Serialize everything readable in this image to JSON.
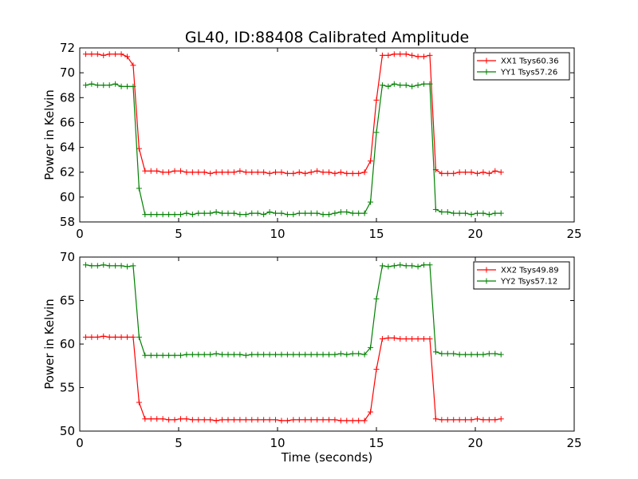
{
  "title": "GL40, ID:88408 Calibrated Amplitude",
  "xlabel": "Time (seconds)",
  "colors": {
    "red": "#ff0000",
    "green": "#008000"
  },
  "chart_data": [
    {
      "type": "line",
      "ylabel": "Power in Kelvin",
      "xlim": [
        0,
        25
      ],
      "ylim": [
        58,
        72
      ],
      "xticks": [
        0,
        5,
        10,
        15,
        20,
        25
      ],
      "yticks": [
        58,
        60,
        62,
        64,
        66,
        68,
        70,
        72
      ],
      "legend": "top-right",
      "x": [
        0.3,
        0.6,
        0.9,
        1.2,
        1.5,
        1.8,
        2.1,
        2.4,
        2.7,
        3.0,
        3.3,
        3.6,
        3.9,
        4.2,
        4.5,
        4.8,
        5.1,
        5.4,
        5.7,
        6.0,
        6.3,
        6.6,
        6.9,
        7.2,
        7.5,
        7.8,
        8.1,
        8.4,
        8.7,
        9.0,
        9.3,
        9.6,
        9.9,
        10.2,
        10.5,
        10.8,
        11.1,
        11.4,
        11.7,
        12.0,
        12.3,
        12.6,
        12.9,
        13.2,
        13.5,
        13.8,
        14.1,
        14.4,
        14.7,
        15.0,
        15.3,
        15.6,
        15.9,
        16.2,
        16.5,
        16.8,
        17.1,
        17.4,
        17.7,
        18.0,
        18.3,
        18.6,
        18.9,
        19.2,
        19.5,
        19.8,
        20.1,
        20.4,
        20.7,
        21.0,
        21.3
      ],
      "series": [
        {
          "name": "XX1 Tsys60.36",
          "color": "#ff0000",
          "values": [
            71.5,
            71.5,
            71.5,
            71.4,
            71.5,
            71.5,
            71.5,
            71.3,
            70.6,
            63.9,
            62.1,
            62.1,
            62.1,
            62.0,
            62.0,
            62.1,
            62.1,
            62.0,
            62.0,
            62.0,
            62.0,
            61.9,
            62.0,
            62.0,
            62.0,
            62.0,
            62.1,
            62.0,
            62.0,
            62.0,
            62.0,
            61.9,
            62.0,
            62.0,
            61.9,
            61.9,
            62.0,
            61.9,
            62.0,
            62.1,
            62.0,
            62.0,
            61.9,
            62.0,
            61.9,
            61.9,
            61.9,
            62.0,
            62.9,
            67.8,
            71.4,
            71.4,
            71.5,
            71.5,
            71.5,
            71.4,
            71.3,
            71.3,
            71.4,
            62.2,
            61.9,
            61.9,
            61.9,
            62.0,
            62.0,
            62.0,
            61.9,
            62.0,
            61.9,
            62.1,
            62.0
          ]
        },
        {
          "name": "YY1 Tsys57.26",
          "color": "#008000",
          "values": [
            69.0,
            69.1,
            69.0,
            69.0,
            69.0,
            69.1,
            68.9,
            68.9,
            68.9,
            60.7,
            58.6,
            58.6,
            58.6,
            58.6,
            58.6,
            58.6,
            58.6,
            58.7,
            58.6,
            58.7,
            58.7,
            58.7,
            58.8,
            58.7,
            58.7,
            58.7,
            58.6,
            58.6,
            58.7,
            58.7,
            58.6,
            58.8,
            58.7,
            58.7,
            58.6,
            58.6,
            58.7,
            58.7,
            58.7,
            58.7,
            58.6,
            58.6,
            58.7,
            58.8,
            58.8,
            58.7,
            58.7,
            58.7,
            59.6,
            65.2,
            69.0,
            68.9,
            69.1,
            69.0,
            69.0,
            68.9,
            69.0,
            69.1,
            69.1,
            59.0,
            58.8,
            58.8,
            58.7,
            58.7,
            58.7,
            58.6,
            58.7,
            58.7,
            58.6,
            58.7,
            58.7
          ]
        }
      ]
    },
    {
      "type": "line",
      "ylabel": "Power in Kelvin",
      "xlim": [
        0,
        25
      ],
      "ylim": [
        50,
        70
      ],
      "xticks": [
        0,
        5,
        10,
        15,
        20,
        25
      ],
      "yticks": [
        50,
        55,
        60,
        65,
        70
      ],
      "legend": "top-right",
      "x": [
        0.3,
        0.6,
        0.9,
        1.2,
        1.5,
        1.8,
        2.1,
        2.4,
        2.7,
        3.0,
        3.3,
        3.6,
        3.9,
        4.2,
        4.5,
        4.8,
        5.1,
        5.4,
        5.7,
        6.0,
        6.3,
        6.6,
        6.9,
        7.2,
        7.5,
        7.8,
        8.1,
        8.4,
        8.7,
        9.0,
        9.3,
        9.6,
        9.9,
        10.2,
        10.5,
        10.8,
        11.1,
        11.4,
        11.7,
        12.0,
        12.3,
        12.6,
        12.9,
        13.2,
        13.5,
        13.8,
        14.1,
        14.4,
        14.7,
        15.0,
        15.3,
        15.6,
        15.9,
        16.2,
        16.5,
        16.8,
        17.1,
        17.4,
        17.7,
        18.0,
        18.3,
        18.6,
        18.9,
        19.2,
        19.5,
        19.8,
        20.1,
        20.4,
        20.7,
        21.0,
        21.3
      ],
      "series": [
        {
          "name": "XX2 Tsys49.89",
          "color": "#ff0000",
          "values": [
            60.8,
            60.8,
            60.8,
            60.9,
            60.8,
            60.8,
            60.8,
            60.8,
            60.8,
            53.3,
            51.4,
            51.4,
            51.4,
            51.4,
            51.3,
            51.3,
            51.4,
            51.4,
            51.3,
            51.3,
            51.3,
            51.3,
            51.2,
            51.3,
            51.3,
            51.3,
            51.3,
            51.3,
            51.3,
            51.3,
            51.3,
            51.3,
            51.3,
            51.2,
            51.2,
            51.3,
            51.3,
            51.3,
            51.3,
            51.3,
            51.3,
            51.3,
            51.3,
            51.2,
            51.2,
            51.2,
            51.2,
            51.2,
            52.2,
            57.1,
            60.6,
            60.7,
            60.7,
            60.6,
            60.6,
            60.6,
            60.6,
            60.6,
            60.6,
            51.4,
            51.3,
            51.3,
            51.3,
            51.3,
            51.3,
            51.3,
            51.4,
            51.3,
            51.3,
            51.3,
            51.4
          ]
        },
        {
          "name": "YY2 Tsys57.12",
          "color": "#008000",
          "values": [
            69.1,
            69.0,
            69.0,
            69.1,
            69.0,
            69.0,
            69.0,
            68.9,
            69.0,
            60.8,
            58.7,
            58.7,
            58.7,
            58.7,
            58.7,
            58.7,
            58.7,
            58.8,
            58.8,
            58.8,
            58.8,
            58.8,
            58.9,
            58.8,
            58.8,
            58.8,
            58.8,
            58.7,
            58.8,
            58.8,
            58.8,
            58.8,
            58.8,
            58.8,
            58.8,
            58.8,
            58.8,
            58.8,
            58.8,
            58.8,
            58.8,
            58.8,
            58.8,
            58.9,
            58.8,
            58.9,
            58.9,
            58.8,
            59.6,
            65.2,
            69.0,
            68.9,
            69.0,
            69.1,
            69.0,
            69.0,
            68.9,
            69.1,
            69.1,
            59.1,
            58.9,
            58.9,
            58.9,
            58.8,
            58.8,
            58.8,
            58.8,
            58.8,
            58.9,
            58.9,
            58.8
          ]
        }
      ]
    }
  ]
}
